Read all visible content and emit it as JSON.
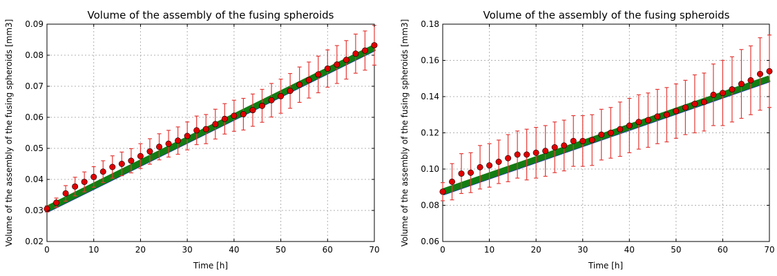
{
  "chart_data": [
    {
      "type": "scatter",
      "title": "Volume of the assembly of the fusing spheroids",
      "xlabel": "Time [h]",
      "ylabel": "Volume of the assembly of the fusing spheroids [mm3]",
      "xlim": [
        0,
        70
      ],
      "ylim": [
        0.02,
        0.09
      ],
      "xticks": [
        "0",
        "10",
        "20",
        "30",
        "40",
        "50",
        "60",
        "70"
      ],
      "yticks": [
        "0.02",
        "0.03",
        "0.04",
        "0.05",
        "0.06",
        "0.07",
        "0.08",
        "0.09"
      ],
      "grid": true,
      "colors": {
        "points": "#e00000",
        "errorbars": "#e53935",
        "fit": "#137d13",
        "fit_edge": "#1f3f9f"
      },
      "fit_line": {
        "x": [
          0,
          70
        ],
        "y": [
          0.0305,
          0.0825
        ]
      },
      "series": [
        {
          "x": [
            0,
            2,
            4,
            6,
            8,
            10,
            12,
            14,
            16,
            18,
            20,
            22,
            24,
            26,
            28,
            30,
            32,
            34,
            36,
            38,
            40,
            42,
            44,
            46,
            48,
            50,
            52,
            54,
            56,
            58,
            60,
            62,
            64,
            66,
            68,
            70
          ],
          "y": [
            0.0305,
            0.0325,
            0.0355,
            0.0377,
            0.0392,
            0.0408,
            0.0425,
            0.044,
            0.045,
            0.046,
            0.0475,
            0.049,
            0.0505,
            0.0515,
            0.0525,
            0.054,
            0.0558,
            0.0562,
            0.0578,
            0.0595,
            0.0605,
            0.061,
            0.0623,
            0.0637,
            0.0655,
            0.0668,
            0.0685,
            0.0705,
            0.072,
            0.0738,
            0.0757,
            0.077,
            0.0785,
            0.0805,
            0.0815,
            0.0832
          ],
          "err": [
            0.001,
            0.0015,
            0.0025,
            0.003,
            0.0032,
            0.0033,
            0.0035,
            0.0036,
            0.0038,
            0.0039,
            0.004,
            0.0041,
            0.0042,
            0.0043,
            0.0044,
            0.0045,
            0.0046,
            0.0047,
            0.0048,
            0.0049,
            0.005,
            0.0051,
            0.0052,
            0.0053,
            0.0054,
            0.0055,
            0.0056,
            0.0057,
            0.0058,
            0.0059,
            0.006,
            0.0061,
            0.0062,
            0.0063,
            0.0063,
            0.0064
          ]
        }
      ]
    },
    {
      "type": "scatter",
      "title": "Volume of the assembly of the fusing spheroids",
      "xlabel": "Time [h]",
      "ylabel": "Volume of the assembly of the fusing spheroids [mm3]",
      "xlim": [
        0,
        70
      ],
      "ylim": [
        0.06,
        0.18
      ],
      "xticks": [
        "0",
        "10",
        "20",
        "30",
        "40",
        "50",
        "60",
        "70"
      ],
      "yticks": [
        "0.06",
        "0.08",
        "0.10",
        "0.12",
        "0.14",
        "0.16",
        "0.18"
      ],
      "grid": true,
      "colors": {
        "points": "#e00000",
        "errorbars": "#e53935",
        "fit": "#137d13",
        "fit_edge": "#1f3f9f"
      },
      "fit_line": {
        "x": [
          0,
          70
        ],
        "y": [
          0.0875,
          0.15
        ]
      },
      "series": [
        {
          "x": [
            0,
            2,
            4,
            6,
            8,
            10,
            12,
            14,
            16,
            18,
            20,
            22,
            24,
            26,
            28,
            30,
            32,
            34,
            36,
            38,
            40,
            42,
            44,
            46,
            48,
            50,
            52,
            54,
            56,
            58,
            60,
            62,
            64,
            66,
            68,
            70
          ],
          "y": [
            0.0875,
            0.093,
            0.0975,
            0.098,
            0.101,
            0.102,
            0.104,
            0.106,
            0.108,
            0.108,
            0.109,
            0.11,
            0.112,
            0.113,
            0.1155,
            0.1155,
            0.116,
            0.119,
            0.12,
            0.122,
            0.124,
            0.126,
            0.127,
            0.129,
            0.13,
            0.132,
            0.134,
            0.136,
            0.137,
            0.141,
            0.142,
            0.144,
            0.147,
            0.149,
            0.1525,
            0.154
          ],
          "err": [
            0.005,
            0.01,
            0.011,
            0.011,
            0.012,
            0.012,
            0.012,
            0.013,
            0.013,
            0.014,
            0.014,
            0.014,
            0.014,
            0.014,
            0.014,
            0.014,
            0.014,
            0.014,
            0.014,
            0.015,
            0.015,
            0.015,
            0.015,
            0.015,
            0.015,
            0.015,
            0.015,
            0.016,
            0.016,
            0.017,
            0.018,
            0.018,
            0.019,
            0.019,
            0.02,
            0.02
          ]
        }
      ]
    }
  ]
}
